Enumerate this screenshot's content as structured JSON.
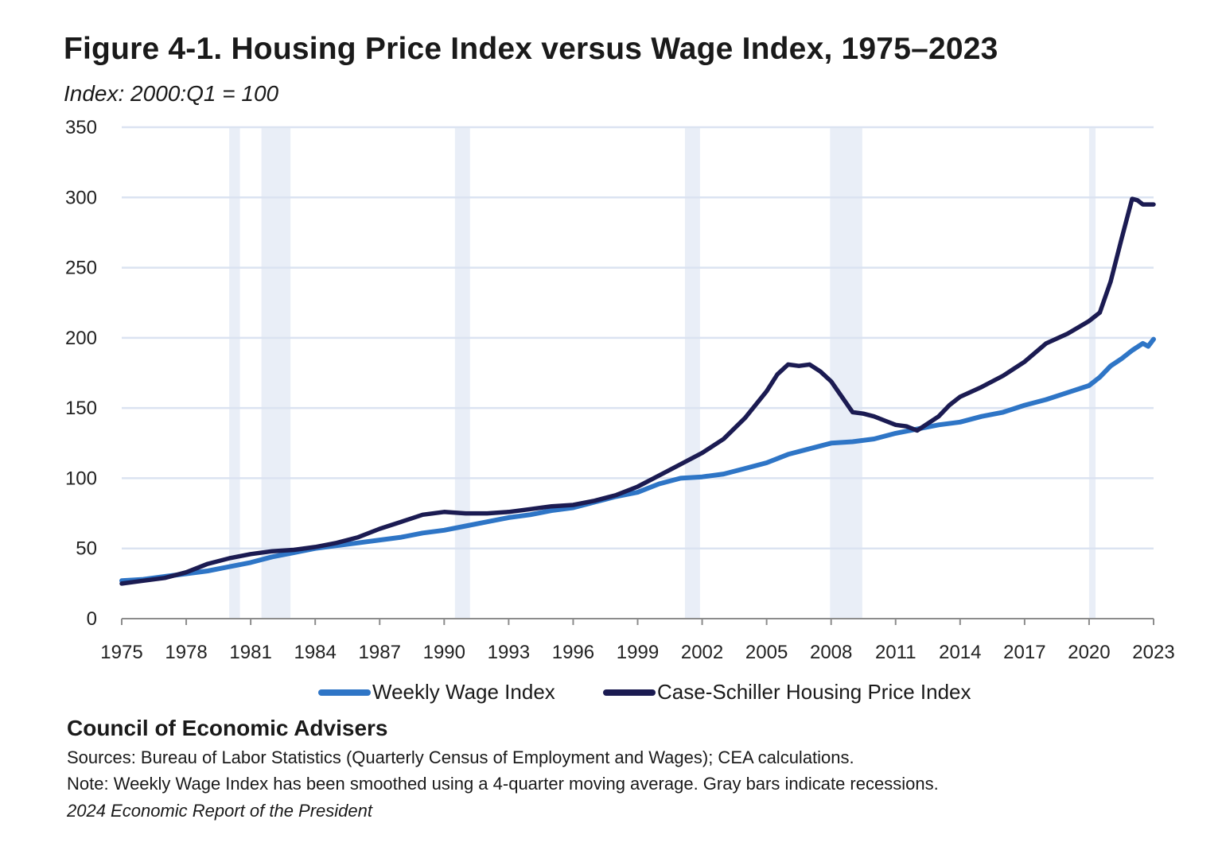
{
  "title": "Figure 4-1. Housing Price Index versus Wage Index, 1975–2023",
  "subtitle": "Index: 2000:Q1 = 100",
  "footer": {
    "organization": "Council of Economic Advisers",
    "sources": "Sources: Bureau of Labor Statistics (Quarterly Census of Employment and Wages); CEA calculations.",
    "note": "Note: Weekly Wage Index has been smoothed using a 4-quarter moving average. Gray bars indicate recessions.",
    "report": "2024 Economic Report of the President"
  },
  "colors": {
    "wage": "#2e75c6",
    "housing": "#1b1b52",
    "recession": "#e9eef7",
    "grid": "#dbe3f1"
  },
  "chart_data": {
    "type": "line",
    "title": "Figure 4-1. Housing Price Index versus Wage Index, 1975–2023",
    "subtitle": "Index: 2000:Q1 = 100",
    "xlabel": "",
    "ylabel": "",
    "xlim": [
      1975,
      2023
    ],
    "ylim": [
      0,
      350
    ],
    "yticks": [
      0,
      50,
      100,
      150,
      200,
      250,
      300,
      350
    ],
    "xticks": [
      1975,
      1978,
      1981,
      1984,
      1987,
      1990,
      1993,
      1996,
      1999,
      2002,
      2005,
      2008,
      2011,
      2014,
      2017,
      2020,
      2023
    ],
    "grid": true,
    "legend": "bottom",
    "recessions": [
      [
        1980.0,
        1980.5
      ],
      [
        1981.5,
        1982.85
      ],
      [
        1990.5,
        1991.2
      ],
      [
        2001.2,
        2001.9
      ],
      [
        2007.95,
        2009.45
      ],
      [
        2020.0,
        2020.3
      ]
    ],
    "series": [
      {
        "name": "Weekly Wage Index",
        "x": [
          1975,
          1976,
          1977,
          1978,
          1979,
          1980,
          1981,
          1982,
          1983,
          1984,
          1985,
          1986,
          1987,
          1988,
          1989,
          1990,
          1991,
          1992,
          1993,
          1994,
          1995,
          1996,
          1997,
          1998,
          1999,
          2000,
          2001,
          2002,
          2003,
          2004,
          2005,
          2006,
          2007,
          2008,
          2009,
          2010,
          2011,
          2012,
          2013,
          2014,
          2015,
          2016,
          2017,
          2018,
          2019,
          2020,
          2020.5,
          2021,
          2021.5,
          2022,
          2022.5,
          2022.75,
          2023
        ],
        "values": [
          27,
          28,
          30,
          32,
          34,
          37,
          40,
          44,
          47,
          50,
          52,
          54,
          56,
          58,
          61,
          63,
          66,
          69,
          72,
          74,
          77,
          79,
          83,
          87,
          90,
          96,
          100,
          101,
          103,
          107,
          111,
          117,
          121,
          125,
          126,
          128,
          132,
          135,
          138,
          140,
          144,
          147,
          152,
          156,
          161,
          166,
          172,
          180,
          185,
          191,
          196,
          194,
          199
        ]
      },
      {
        "name": "Case-Schiller Housing Price Index",
        "x": [
          1975,
          1976,
          1977,
          1978,
          1979,
          1980,
          1981,
          1982,
          1983,
          1984,
          1985,
          1986,
          1987,
          1988,
          1989,
          1990,
          1991,
          1992,
          1993,
          1994,
          1995,
          1996,
          1997,
          1998,
          1999,
          2000,
          2001,
          2002,
          2003,
          2004,
          2005,
          2005.5,
          2006,
          2006.5,
          2007,
          2007.5,
          2008,
          2008.5,
          2009,
          2009.5,
          2010,
          2010.5,
          2011,
          2011.5,
          2012,
          2012.5,
          2013,
          2013.5,
          2014,
          2015,
          2016,
          2017,
          2018,
          2019,
          2020,
          2020.5,
          2021,
          2021.5,
          2022,
          2022.25,
          2022.5,
          2023
        ],
        "values": [
          25,
          27,
          29,
          33,
          39,
          43,
          46,
          48,
          49,
          51,
          54,
          58,
          64,
          69,
          74,
          76,
          75,
          75,
          76,
          78,
          80,
          81,
          84,
          88,
          94,
          102,
          110,
          118,
          128,
          143,
          162,
          174,
          181,
          180,
          181,
          176,
          169,
          158,
          147,
          146,
          144,
          141,
          138,
          137,
          134,
          139,
          144,
          152,
          158,
          165,
          173,
          183,
          196,
          203,
          212,
          218,
          240,
          270,
          299,
          298,
          295,
          295
        ]
      }
    ]
  }
}
